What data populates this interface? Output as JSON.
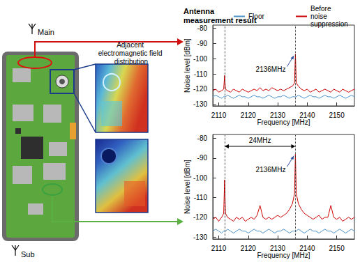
{
  "diagram": {
    "main_antenna": "Main",
    "sub_antenna": "Sub",
    "field_label": "Adjacent electromagnetic field distribution"
  },
  "chart_data": [
    {
      "type": "line",
      "title": "Antenna measurement result",
      "xlabel": "Frequency [MHz]",
      "ylabel": "Noise level [dBm]",
      "xlim": [
        2108,
        2156
      ],
      "ylim": [
        -131,
        -78
      ],
      "xticks": [
        2110,
        2120,
        2130,
        2140,
        2150
      ],
      "yticks": [
        -130,
        -120,
        -110,
        -100,
        -90,
        -80
      ],
      "grid": false,
      "legend": "upper right",
      "reference_lines": [
        2112,
        2136
      ],
      "annotations": [
        {
          "text": "2136MHz",
          "x": 2136,
          "y": -97
        }
      ],
      "x": [
        2108,
        2109,
        2110,
        2111,
        2111.7,
        2112,
        2112.3,
        2113,
        2114,
        2115,
        2116,
        2117,
        2118,
        2119,
        2120,
        2121,
        2122,
        2123,
        2124,
        2125,
        2126,
        2127,
        2128,
        2129,
        2130,
        2131,
        2132,
        2133,
        2134,
        2135,
        2135.7,
        2136,
        2136.3,
        2137,
        2138,
        2139,
        2140,
        2141,
        2142,
        2143,
        2144,
        2145,
        2146,
        2147,
        2148,
        2149,
        2150,
        2151,
        2152,
        2153,
        2154,
        2155,
        2156
      ],
      "series": [
        {
          "name": "Floor",
          "color": "#4a90c8",
          "values": [
            -125,
            -124,
            -125,
            -126,
            -125,
            -125,
            -125,
            -124,
            -125,
            -126,
            -125,
            -124,
            -125,
            -125,
            -126,
            -125,
            -124,
            -125,
            -125,
            -126,
            -125,
            -124,
            -125,
            -126,
            -125,
            -125,
            -124,
            -125,
            -126,
            -125,
            -125,
            -125,
            -125,
            -124,
            -125,
            -126,
            -125,
            -124,
            -125,
            -125,
            -126,
            -125,
            -124,
            -125,
            -125,
            -126,
            -125,
            -124,
            -125,
            -126,
            -125,
            -124,
            -125
          ]
        },
        {
          "name": "Before noise suppression",
          "color": "#cc0000",
          "values": [
            -121,
            -120,
            -122,
            -121,
            -120,
            -111,
            -120,
            -121,
            -122,
            -120,
            -121,
            -122,
            -120,
            -121,
            -122,
            -121,
            -120,
            -121,
            -119,
            -121,
            -120,
            -121,
            -119,
            -120,
            -121,
            -120,
            -121,
            -120,
            -119,
            -118,
            -116,
            -97,
            -116,
            -118,
            -120,
            -121,
            -120,
            -122,
            -121,
            -120,
            -122,
            -121,
            -120,
            -121,
            -122,
            -120,
            -121,
            -122,
            -120,
            -121,
            -122,
            -121,
            -120
          ]
        }
      ]
    },
    {
      "type": "line",
      "xlabel": "Frequency [MHz]",
      "ylabel": "Noise level [dBm]",
      "xlim": [
        2108,
        2156
      ],
      "ylim": [
        -131,
        -78
      ],
      "xticks": [
        2110,
        2120,
        2130,
        2140,
        2150
      ],
      "yticks": [
        -130,
        -120,
        -110,
        -100,
        -90,
        -80
      ],
      "grid": false,
      "reference_lines": [
        2112,
        2136
      ],
      "annotations": [
        {
          "text": "2136MHz",
          "x": 2136,
          "y": -88
        },
        {
          "text": "24MHz",
          "x_from": 2112,
          "x_to": 2136
        }
      ],
      "x": [
        2108,
        2109,
        2110,
        2111,
        2111.7,
        2112,
        2112.3,
        2113,
        2114,
        2115,
        2116,
        2117,
        2118,
        2119,
        2120,
        2121,
        2122,
        2123,
        2124,
        2125,
        2126,
        2127,
        2128,
        2129,
        2130,
        2131,
        2132,
        2133,
        2134,
        2135,
        2135.7,
        2136,
        2136.3,
        2137,
        2138,
        2139,
        2140,
        2141,
        2142,
        2143,
        2144,
        2145,
        2146,
        2147,
        2148,
        2149,
        2150,
        2151,
        2152,
        2153,
        2154,
        2155,
        2156
      ],
      "series": [
        {
          "name": "Floor",
          "color": "#4a90c8",
          "values": [
            -127,
            -126,
            -127,
            -128,
            -127,
            -127,
            -127,
            -126,
            -127,
            -128,
            -127,
            -126,
            -127,
            -127,
            -128,
            -127,
            -126,
            -127,
            -127,
            -128,
            -127,
            -126,
            -127,
            -128,
            -127,
            -127,
            -126,
            -127,
            -128,
            -127,
            -127,
            -127,
            -127,
            -126,
            -127,
            -128,
            -127,
            -126,
            -127,
            -127,
            -128,
            -127,
            -126,
            -127,
            -127,
            -128,
            -127,
            -126,
            -127,
            -128,
            -127,
            -126,
            -127
          ]
        },
        {
          "name": "Before noise suppression",
          "color": "#cc0000",
          "values": [
            -121,
            -120,
            -122,
            -120,
            -118,
            -101,
            -118,
            -120,
            -121,
            -122,
            -120,
            -121,
            -120,
            -122,
            -121,
            -120,
            -121,
            -119,
            -114,
            -120,
            -121,
            -120,
            -121,
            -120,
            -119,
            -120,
            -119,
            -118,
            -116,
            -113,
            -108,
            -88,
            -108,
            -113,
            -116,
            -118,
            -119,
            -120,
            -121,
            -120,
            -119,
            -121,
            -120,
            -120,
            -114,
            -120,
            -121,
            -120,
            -122,
            -121,
            -120,
            -121,
            -120
          ]
        }
      ]
    }
  ]
}
